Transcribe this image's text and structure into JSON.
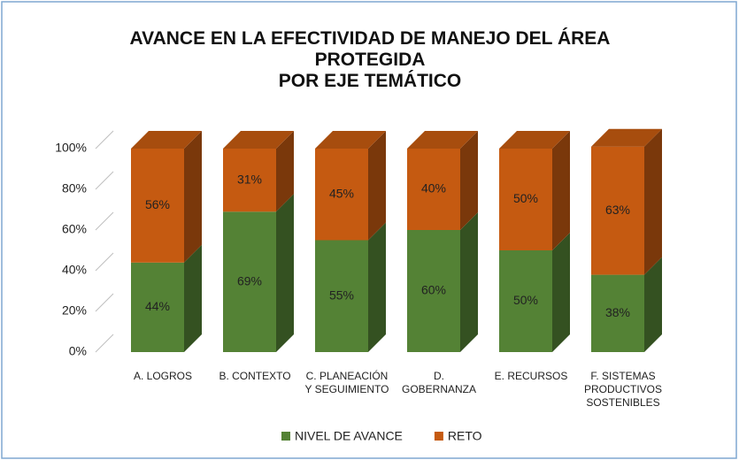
{
  "chart_data": {
    "type": "bar3d_stacked",
    "title": "AVANCE EN LA EFECTIVIDAD DE MANEJO DEL ÁREA\nPROTEGIDA\nPOR EJE TEMÁTICO",
    "categories": [
      "A. LOGROS",
      "B. CONTEXTO",
      "C. PLANEACIÓN\nY SEGUIMIENTO",
      "D.\nGOBERNANZA",
      "E. RECURSOS",
      "F. SISTEMAS\nPRODUCTIVOS\nSOSTENIBLES"
    ],
    "series": [
      {
        "name": "NIVEL DE AVANCE",
        "color": "#548235",
        "values": [
          44,
          69,
          55,
          60,
          50,
          38
        ],
        "value_labels": [
          "44%",
          "69%",
          "55%",
          "60%",
          "50%",
          "38%"
        ]
      },
      {
        "name": "RETO",
        "color": "#c55a11",
        "values": [
          56,
          31,
          45,
          40,
          50,
          63
        ],
        "value_labels": [
          "56%",
          "31%",
          "45%",
          "40%",
          "50%",
          "63%"
        ]
      }
    ],
    "ylim": [
      0,
      100
    ],
    "yticks": [
      {
        "value": 0,
        "label": "0%"
      },
      {
        "value": 20,
        "label": "20%"
      },
      {
        "value": 40,
        "label": "40%"
      },
      {
        "value": 60,
        "label": "60%"
      },
      {
        "value": 80,
        "label": "80%"
      },
      {
        "value": 100,
        "label": "100%"
      }
    ],
    "legend": "bottom"
  }
}
